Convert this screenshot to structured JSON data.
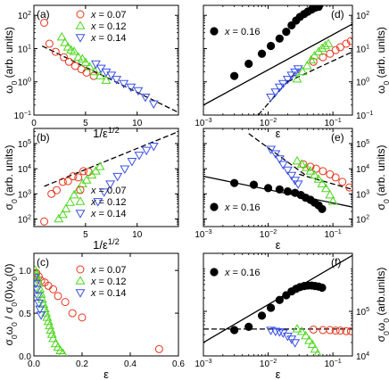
{
  "chart_data": [
    {
      "panel": "(a)",
      "type": "scatter",
      "xlabel": "1/ε^{1/2}",
      "ylabel": "ω_0 (arb. units)",
      "xlim": [
        0,
        14
      ],
      "ylim": [
        0.1,
        200
      ],
      "xscale": "linear",
      "yscale": "log",
      "xticks": [
        0,
        5,
        10
      ],
      "yticks": [
        0.1,
        1,
        10,
        100
      ],
      "legend": "top-right",
      "series": [
        {
          "name": "x = 0.07",
          "marker": "circle",
          "color": "#e8341c",
          "x": [
            1.0,
            1.5,
            2.1,
            2.9,
            3.4,
            4.0,
            4.6,
            5.1,
            5.8
          ],
          "y": [
            60,
            14,
            8,
            5.5,
            4,
            3,
            2.4,
            1.9,
            1.5
          ]
        },
        {
          "name": "x = 0.12",
          "marker": "triangle-up",
          "color": "#4cd61c",
          "x": [
            2.7,
            3.0,
            3.3,
            3.6,
            3.9,
            4.3,
            4.7,
            5.0,
            5.4,
            5.9,
            6.4,
            7.0
          ],
          "y": [
            22,
            15,
            11,
            9,
            8,
            5.5,
            4.8,
            3.8,
            2.8,
            2.0,
            1.5,
            1.1
          ]
        },
        {
          "name": "x = 0.14",
          "marker": "triangle-down",
          "color": "#3a50e6",
          "x": [
            6.0,
            6.5,
            7.0,
            7.5,
            8.0,
            8.7,
            9.4,
            10.1,
            10.8,
            11.6
          ],
          "y": [
            3.5,
            2.6,
            2.0,
            1.6,
            1.2,
            0.9,
            0.7,
            0.55,
            0.35,
            0.22
          ]
        }
      ],
      "fit": {
        "kind": "dashed",
        "color": "#000000",
        "x": [
          0.8,
          14
        ],
        "y": [
          12,
          0.12
        ]
      }
    },
    {
      "panel": "(b)",
      "type": "scatter",
      "xlabel": "1/ε^{1/2}",
      "ylabel": "σ_0 (arb. units)",
      "xlim": [
        0,
        14
      ],
      "ylim": [
        50,
        400000
      ],
      "xscale": "linear",
      "yscale": "log",
      "xticks": [
        5,
        10
      ],
      "yticks": [
        100,
        1000,
        10000,
        100000
      ],
      "legend": "bottom-right",
      "series": [
        {
          "name": "x = 0.07",
          "marker": "circle",
          "color": "#e8341c",
          "x": [
            1.0,
            1.7,
            2.2,
            2.8,
            3.3,
            3.8,
            4.3,
            4.8,
            5.3
          ],
          "y": [
            80,
            1000,
            1400,
            3000,
            3200,
            5000,
            4500,
            8000,
            7500
          ]
        },
        {
          "name": "x = 0.12",
          "marker": "triangle-up",
          "color": "#4cd61c",
          "x": [
            2.4,
            2.8,
            3.1,
            3.5,
            3.9,
            4.3,
            4.7,
            5.1,
            5.6,
            6.0,
            6.4
          ],
          "y": [
            100,
            150,
            250,
            450,
            900,
            1400,
            2500,
            3500,
            5500,
            8000,
            12000
          ]
        },
        {
          "name": "x = 0.14",
          "marker": "triangle-down",
          "color": "#3a50e6",
          "x": [
            6.2,
            6.8,
            7.4,
            8.1,
            8.8,
            9.5,
            10.2,
            10.9,
            11.6
          ],
          "y": [
            500,
            1200,
            2500,
            5000,
            10000,
            20000,
            35000,
            55000,
            80000
          ]
        }
      ],
      "fit": {
        "kind": "dashed",
        "color": "#000000",
        "x": [
          1.0,
          14
        ],
        "y": [
          2000,
          300000
        ]
      }
    },
    {
      "panel": "(c)",
      "type": "scatter",
      "xlabel": "ε",
      "ylabel": "σ_0ω_0 / σ_0(0)ω_0(0)",
      "xlim": [
        0,
        0.6
      ],
      "ylim": [
        0,
        1.2
      ],
      "xscale": "linear",
      "yscale": "linear",
      "xticks": [
        0.0,
        0.2,
        0.4,
        0.6
      ],
      "xticklabels": [
        "0.0",
        "0.2",
        "0.4",
        "0.6"
      ],
      "yticks": [
        0.0,
        0.5,
        1.0
      ],
      "yticklabels": [
        "0.0",
        "0.5",
        "1.0"
      ],
      "legend": "top-right",
      "series": [
        {
          "name": "x = 0.07",
          "marker": "circle",
          "color": "#e8341c",
          "x": [
            0.01,
            0.02,
            0.03,
            0.045,
            0.06,
            0.08,
            0.1,
            0.13,
            0.16,
            0.2,
            0.52
          ],
          "y": [
            0.97,
            0.93,
            0.88,
            0.86,
            0.82,
            0.78,
            0.7,
            0.63,
            0.5,
            0.45,
            0.08
          ]
        },
        {
          "name": "x = 0.12",
          "marker": "triangle-up",
          "color": "#4cd61c",
          "x": [
            0.005,
            0.01,
            0.015,
            0.02,
            0.025,
            0.03,
            0.035,
            0.04,
            0.045,
            0.05,
            0.055,
            0.06,
            0.065,
            0.07,
            0.075,
            0.08,
            0.09,
            0.1,
            0.11,
            0.12
          ],
          "y": [
            1.0,
            0.95,
            0.9,
            0.85,
            0.78,
            0.72,
            0.66,
            0.6,
            0.55,
            0.5,
            0.45,
            0.4,
            0.35,
            0.3,
            0.25,
            0.2,
            0.14,
            0.1,
            0.06,
            0.03
          ]
        },
        {
          "name": "x = 0.14",
          "marker": "triangle-down",
          "color": "#3a50e6",
          "x": [
            0.004,
            0.008,
            0.012,
            0.016,
            0.02,
            0.025,
            0.03
          ],
          "y": [
            0.92,
            0.85,
            0.78,
            0.7,
            0.62,
            0.55,
            0.48
          ]
        }
      ]
    },
    {
      "panel": "(d)",
      "type": "scatter",
      "xlabel": "ε",
      "ylabel": "ω_0 (arb. units)",
      "xlim": [
        0.001,
        0.2
      ],
      "ylim": [
        0.1,
        200
      ],
      "xscale": "log",
      "yscale": "log",
      "xticks": [
        0.001,
        0.01,
        0.1
      ],
      "yticks": [
        0.1,
        1,
        10,
        100
      ],
      "yaxis_side": "right",
      "legend": "left",
      "series": [
        {
          "name": "x = 0.16",
          "marker": "circle-filled",
          "color": "#000000",
          "x": [
            0.003,
            0.005,
            0.008,
            0.011,
            0.015,
            0.019,
            0.023,
            0.027,
            0.031,
            0.036,
            0.041,
            0.047,
            0.053,
            0.06
          ],
          "y": [
            1.5,
            3.5,
            7,
            12,
            20,
            32,
            50,
            70,
            90,
            110,
            130,
            150,
            170,
            180
          ]
        },
        {
          "name": "",
          "marker": "circle",
          "color": "#e8341c",
          "x": [
            0.05,
            0.07,
            0.09,
            0.11,
            0.13,
            0.16,
            0.19
          ],
          "y": [
            4,
            5.5,
            7,
            9,
            11,
            14,
            17
          ]
        },
        {
          "name": "",
          "marker": "triangle-up",
          "color": "#4cd61c",
          "x": [
            0.028,
            0.034,
            0.04,
            0.046,
            0.052,
            0.06,
            0.068,
            0.076,
            0.085
          ],
          "y": [
            1.2,
            2,
            3,
            4.5,
            6,
            8,
            10,
            12,
            14
          ]
        },
        {
          "name": "",
          "marker": "triangle-down",
          "color": "#3a50e6",
          "x": [
            0.011,
            0.013,
            0.015,
            0.017,
            0.02,
            0.023,
            0.026,
            0.029
          ],
          "y": [
            0.35,
            0.5,
            0.7,
            0.9,
            1.2,
            1.6,
            2.0,
            2.5
          ]
        }
      ],
      "fits": [
        {
          "kind": "solid",
          "color": "#000000",
          "x": [
            0.001,
            0.2
          ],
          "y": [
            0.2,
            55
          ]
        },
        {
          "kind": "dashed",
          "color": "#000000",
          "x": [
            0.02,
            0.2
          ],
          "y": [
            1.0,
            8
          ]
        },
        {
          "kind": "dashdot",
          "color": "#000000",
          "x": [
            0.007,
            0.03
          ],
          "y": [
            0.1,
            2.5
          ]
        }
      ]
    },
    {
      "panel": "(e)",
      "type": "scatter",
      "xlabel": "ε",
      "ylabel": "σ_0 (arb. units)",
      "xlim": [
        0.001,
        0.2
      ],
      "ylim": [
        50,
        400000
      ],
      "xscale": "log",
      "yscale": "log",
      "xticks": [
        0.001,
        0.01,
        0.1
      ],
      "yticks": [
        100,
        1000,
        10000,
        100000
      ],
      "yaxis_side": "right",
      "legend": "bottom-left",
      "series": [
        {
          "name": "x = 0.16",
          "marker": "circle-filled",
          "color": "#000000",
          "x": [
            0.003,
            0.006,
            0.01,
            0.015,
            0.02,
            0.026,
            0.032,
            0.038,
            0.045,
            0.052,
            0.06,
            0.068
          ],
          "y": [
            2700,
            2300,
            1700,
            1500,
            1250,
            1100,
            900,
            700,
            580,
            450,
            350,
            250
          ]
        },
        {
          "name": "",
          "marker": "circle",
          "color": "#e8341c",
          "x": [
            0.035,
            0.045,
            0.055,
            0.07,
            0.09,
            0.11,
            0.14,
            0.18
          ],
          "y": [
            15000,
            12000,
            10000,
            8000,
            6000,
            4500,
            3000,
            1800
          ]
        },
        {
          "name": "",
          "marker": "triangle-up",
          "color": "#4cd61c",
          "x": [
            0.028,
            0.033,
            0.039,
            0.045,
            0.052,
            0.06,
            0.068,
            0.078,
            0.09,
            0.1
          ],
          "y": [
            20000,
            15000,
            11000,
            8000,
            5500,
            3800,
            2500,
            1600,
            900,
            500
          ]
        },
        {
          "name": "",
          "marker": "triangle-down",
          "color": "#3a50e6",
          "x": [
            0.011,
            0.013,
            0.015,
            0.017,
            0.02,
            0.023,
            0.026,
            0.029
          ],
          "y": [
            60000,
            40000,
            25000,
            15000,
            9000,
            5500,
            3500,
            2500
          ]
        }
      ],
      "fits": [
        {
          "kind": "solid",
          "color": "#000000",
          "x": [
            0.001,
            0.2
          ],
          "y": [
            5000,
            300
          ]
        },
        {
          "kind": "dashed",
          "color": "#000000",
          "x": [
            0.005,
            0.04
          ],
          "y": [
            250000,
            5000
          ]
        },
        {
          "kind": "dashed",
          "color": "#000000",
          "x": [
            0.03,
            0.2
          ],
          "y": [
            6000,
            1500
          ]
        }
      ]
    },
    {
      "panel": "(f)",
      "type": "scatter",
      "xlabel": "ε",
      "ylabel": "σ_0ω_0 (arb.units)",
      "xlim": [
        0.001,
        0.2
      ],
      "ylim": [
        10000,
        2000000
      ],
      "xscale": "log",
      "yscale": "log",
      "xticks": [
        0.001,
        0.01,
        0.1
      ],
      "yticks": [
        10000,
        100000
      ],
      "yaxis_side": "right",
      "legend": "top-left",
      "series": [
        {
          "name": "x = 0.16",
          "marker": "circle-filled",
          "color": "#000000",
          "x": [
            0.003,
            0.005,
            0.008,
            0.011,
            0.015,
            0.019,
            0.023,
            0.027,
            0.031,
            0.036,
            0.041,
            0.047,
            0.053,
            0.06,
            0.068
          ],
          "y": [
            38000,
            45000,
            80000,
            120000,
            180000,
            230000,
            280000,
            320000,
            350000,
            370000,
            380000,
            380000,
            370000,
            360000,
            340000
          ]
        },
        {
          "name": "",
          "marker": "circle",
          "color": "#e8341c",
          "x": [
            0.05,
            0.07,
            0.09,
            0.11,
            0.13,
            0.16,
            0.19
          ],
          "y": [
            39000,
            38000,
            38000,
            37000,
            37000,
            36000,
            36000
          ]
        },
        {
          "name": "",
          "marker": "triangle-up",
          "color": "#4cd61c",
          "x": [
            0.028,
            0.033,
            0.038,
            0.043,
            0.048,
            0.053,
            0.058
          ],
          "y": [
            40000,
            35000,
            28000,
            22000,
            18000,
            14000,
            11000
          ]
        },
        {
          "name": "",
          "marker": "triangle-down",
          "color": "#3a50e6",
          "x": [
            0.011,
            0.013,
            0.015,
            0.017,
            0.02,
            0.023,
            0.026
          ],
          "y": [
            38000,
            36000,
            35000,
            33000,
            28000,
            24000,
            20000
          ]
        }
      ],
      "fits": [
        {
          "kind": "solid",
          "color": "#000000",
          "x": [
            0.001,
            0.2
          ],
          "y": [
            20000,
            1800000
          ]
        },
        {
          "kind": "dashed",
          "color": "#000000",
          "x": [
            0.001,
            0.2
          ],
          "y": [
            40000,
            40000
          ]
        }
      ]
    }
  ]
}
